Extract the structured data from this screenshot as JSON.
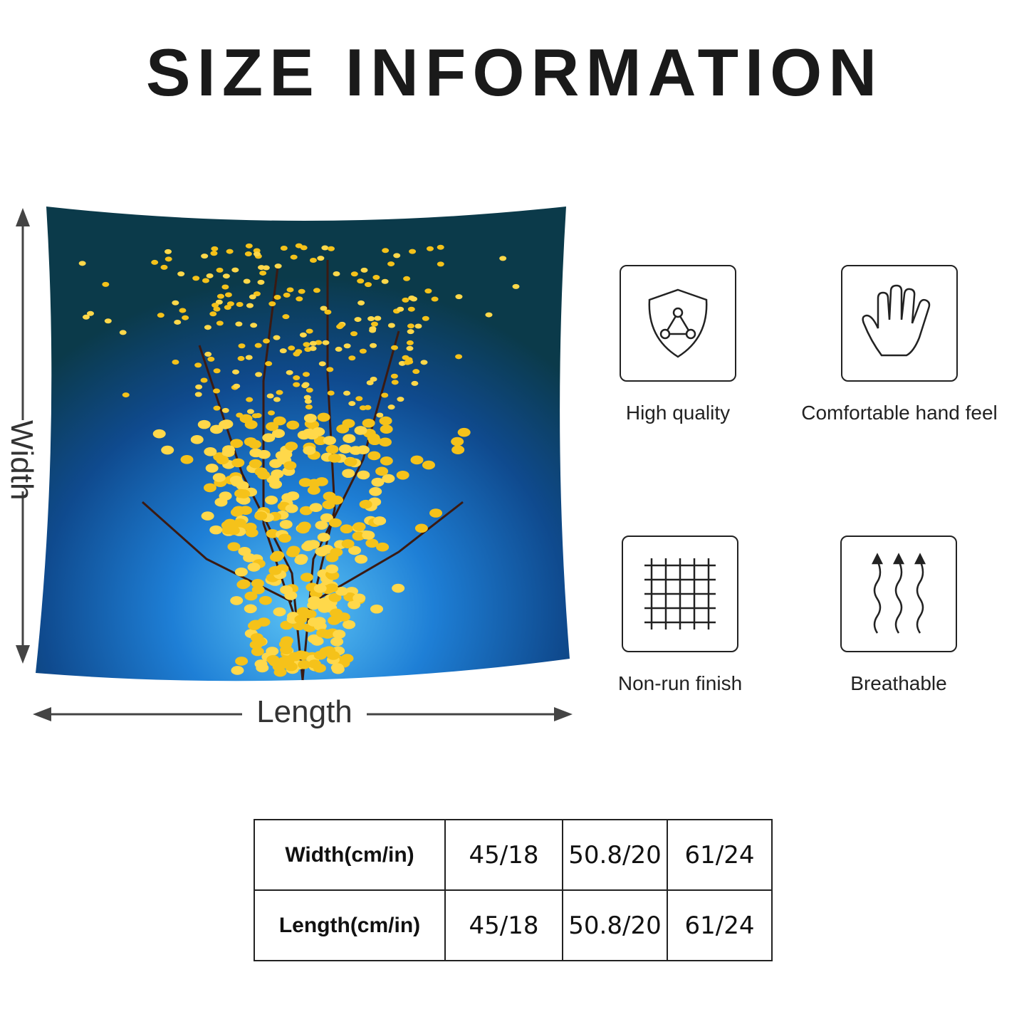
{
  "title": "SIZE INFORMATION",
  "dimensions": {
    "width_label": "Width",
    "length_label": "Length"
  },
  "features": [
    {
      "label": "High quality",
      "icon": "shield-icon"
    },
    {
      "label": "Comfortable hand feel",
      "icon": "hand-icon"
    },
    {
      "label": "Non-run finish",
      "icon": "grid-icon"
    },
    {
      "label": "Breathable",
      "icon": "wavy-arrows-icon"
    }
  ],
  "size_table": {
    "rows": [
      {
        "header": "Width(cm/in)",
        "values": [
          "45/18",
          "50.8/20",
          "61/24"
        ]
      },
      {
        "header": "Length(cm/in)",
        "values": [
          "45/18",
          "50.8/20",
          "61/24"
        ]
      }
    ]
  },
  "colors": {
    "pillow_dark": "#0b3a4a",
    "pillow_glow": "#3fa6e8",
    "leaf": "#f5c21a",
    "branch": "#3a1a12"
  }
}
